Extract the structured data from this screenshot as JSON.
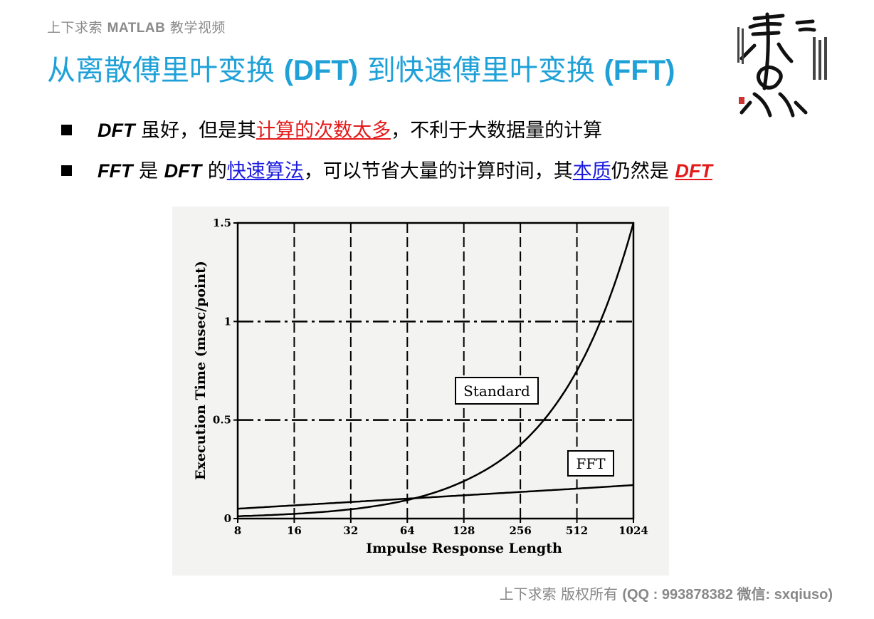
{
  "header": {
    "course_label_cn": "上下求索",
    "course_label_en": "MATLAB",
    "course_label_suffix": "教学视频",
    "title_part1": "从离散傅里叶变换",
    "title_part2": "(DFT)",
    "title_part3": "到快速傅里叶变换",
    "title_part4": "(FFT)"
  },
  "logo": {
    "icon": "calligraphy-seal-logo"
  },
  "bullets": [
    {
      "t1": "DFT",
      "t2": " 虽好，但是其",
      "t3": "计算的次数太多",
      "t4": "，不利于大数据量的计算"
    },
    {
      "t1": "FFT",
      "t2": " 是 ",
      "t3": "DFT",
      "t4": " 的",
      "t5": "快速算法",
      "t6": "，可以节省大量的计算时间，其",
      "t7": "本质",
      "t8": "仍然是 ",
      "t9": "DFT"
    }
  ],
  "chart_data": {
    "type": "line",
    "xlabel": "Impulse Response Length",
    "ylabel": "Execution Time (msec/point)",
    "x": [
      8,
      16,
      32,
      64,
      128,
      256,
      512,
      1024
    ],
    "x_tick_labels": [
      "8",
      "16",
      "32",
      "64",
      "128",
      "256",
      "512",
      "1024"
    ],
    "x_scale": "log2",
    "y_ticks": [
      0,
      0.5,
      1,
      1.5
    ],
    "y_tick_labels": [
      "0",
      "0.5",
      "1",
      "1.5"
    ],
    "ylim": [
      0,
      1.5
    ],
    "grid": "dashed",
    "series": [
      {
        "name": "Standard",
        "values": [
          0.012,
          0.024,
          0.047,
          0.094,
          0.19,
          0.375,
          0.75,
          1.5
        ]
      },
      {
        "name": "FFT",
        "values": [
          0.05,
          0.067,
          0.084,
          0.101,
          0.118,
          0.135,
          0.152,
          0.17
        ]
      }
    ],
    "annotations": [
      "Standard",
      "FFT"
    ]
  },
  "footer": {
    "copyright_cn": "上下求索  版权所有",
    "contact": "(QQ : 993878382   微信: sxqiuso)"
  },
  "colors": {
    "title": "#1fa1d8",
    "highlight_red": "#e41a1a",
    "link_blue": "#1a1ae0",
    "muted_text": "#888888"
  }
}
